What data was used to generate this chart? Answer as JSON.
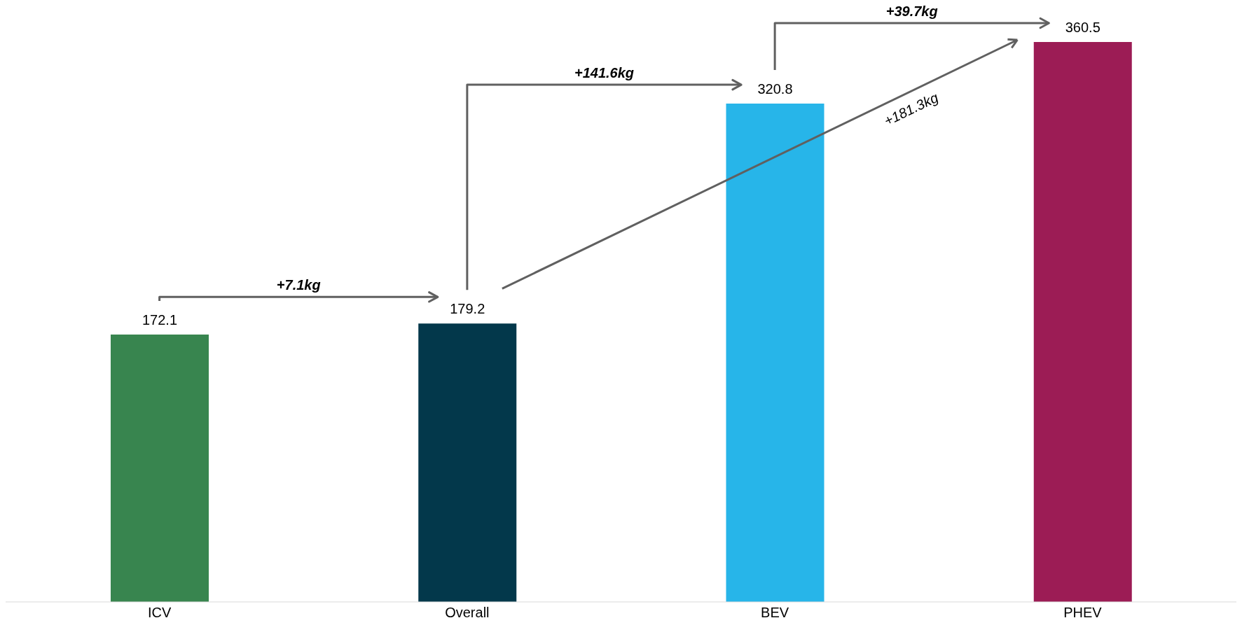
{
  "chart_data": {
    "type": "bar",
    "categories": [
      "ICV",
      "Overall",
      "BEV",
      "PHEV"
    ],
    "values": [
      172.1,
      179.2,
      320.8,
      360.5
    ],
    "colors": [
      "#38854f",
      "#03384b",
      "#27b5e9",
      "#9c1c55"
    ],
    "data_labels": true,
    "grid": false,
    "legend": false,
    "annotations": [
      "+7.1kg",
      "+141.6kg",
      "+39.7kg",
      "+181.3kg"
    ]
  }
}
